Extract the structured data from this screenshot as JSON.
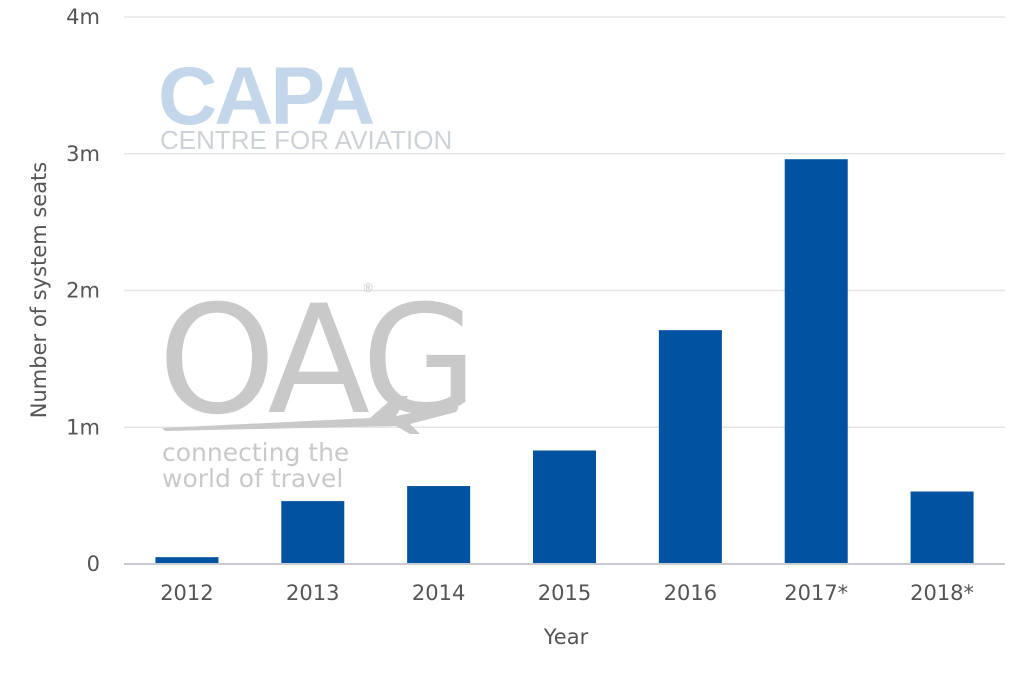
{
  "chart_data": {
    "type": "bar",
    "categories": [
      "2012",
      "2013",
      "2014",
      "2015",
      "2016",
      "2017*",
      "2018*"
    ],
    "values": [
      50000,
      460000,
      570000,
      830000,
      1710000,
      2960000,
      530000
    ],
    "xlabel": "Year",
    "ylabel": "Number of system seats",
    "ylim": [
      0,
      4000000
    ],
    "yticks": [
      {
        "value": 0,
        "label": "0"
      },
      {
        "value": 1000000,
        "label": "1m"
      },
      {
        "value": 2000000,
        "label": "2m"
      },
      {
        "value": 3000000,
        "label": "3m"
      },
      {
        "value": 4000000,
        "label": "4m"
      }
    ],
    "grid": true,
    "legend": "none",
    "bar_color": "#0053a0"
  },
  "watermarks": {
    "capa_name": "CAPA",
    "capa_subtitle": "CENTRE FOR AVIATION",
    "oag_name": "OAG",
    "oag_registered": "®",
    "oag_tagline_line1": "connecting the",
    "oag_tagline_line2": "world of travel"
  },
  "colors": {
    "gridline": "#e3e6e9",
    "axis": "#c8ccd0",
    "tick_text": "#555555"
  }
}
